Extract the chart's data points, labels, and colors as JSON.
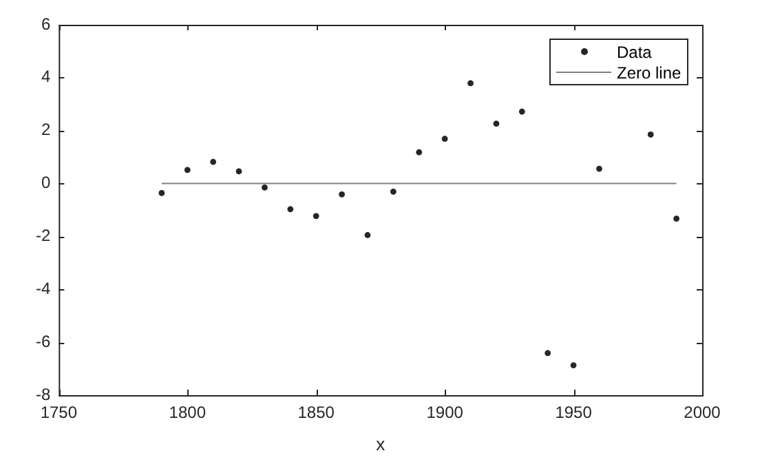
{
  "chart_data": {
    "type": "scatter",
    "xlabel": "x",
    "xlim": [
      1750,
      2000
    ],
    "xticks": [
      1750,
      1800,
      1850,
      1900,
      1950,
      2000
    ],
    "ylim": [
      -8,
      6
    ],
    "yticks": [
      -8,
      -6,
      -4,
      -2,
      0,
      2,
      4,
      6
    ],
    "legend": "top right",
    "grid": false,
    "x": [
      1790,
      1800,
      1810,
      1820,
      1830,
      1840,
      1850,
      1860,
      1870,
      1880,
      1890,
      1900,
      1910,
      1920,
      1930,
      1940,
      1950,
      1960,
      1980,
      1990
    ],
    "series": [
      {
        "name": "Data",
        "color": "#262626",
        "marker": "circle",
        "values": [
          -0.36,
          0.51,
          0.82,
          0.46,
          -0.15,
          -0.97,
          -1.23,
          -0.41,
          -1.95,
          -0.31,
          1.18,
          1.69,
          3.79,
          2.26,
          2.72,
          -6.41,
          -6.87,
          0.56,
          1.85,
          -1.33
        ]
      },
      {
        "name": "Zero line",
        "type": "line",
        "marker": "none",
        "color": "#808080",
        "x": [
          1790,
          1990
        ],
        "values": [
          0,
          0
        ]
      }
    ]
  }
}
